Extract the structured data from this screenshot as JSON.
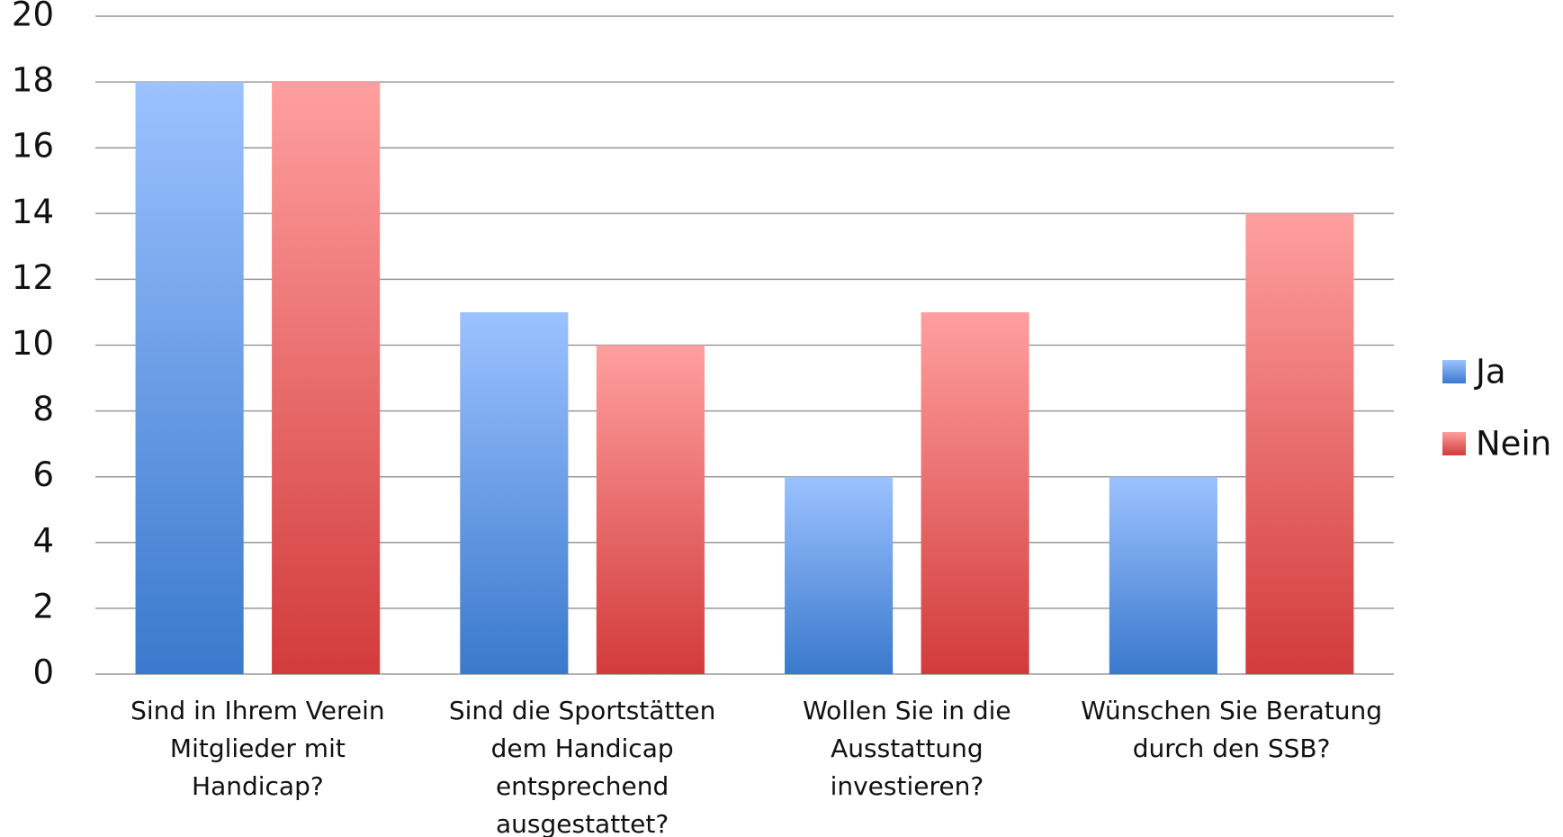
{
  "chart_data": {
    "type": "bar",
    "categories": [
      "Sind in Ihrem Verein Mitglieder mit Handicap?",
      "Sind die Sportstätten dem Handicap entsprechend ausgestattet?",
      "Wollen Sie in die Ausstattung investieren?",
      "Wünschen Sie Beratung durch den SSB?"
    ],
    "series": [
      {
        "name": "Ja",
        "color": "#4a86d6",
        "values": [
          18,
          11,
          6,
          6
        ]
      },
      {
        "name": "Nein",
        "color": "#e05252",
        "values": [
          18,
          10,
          11,
          14
        ]
      }
    ],
    "ylim": [
      0,
      20
    ],
    "yticks": [
      0,
      2,
      4,
      6,
      8,
      10,
      12,
      14,
      16,
      18,
      20
    ],
    "grid": true,
    "legend": "right"
  }
}
